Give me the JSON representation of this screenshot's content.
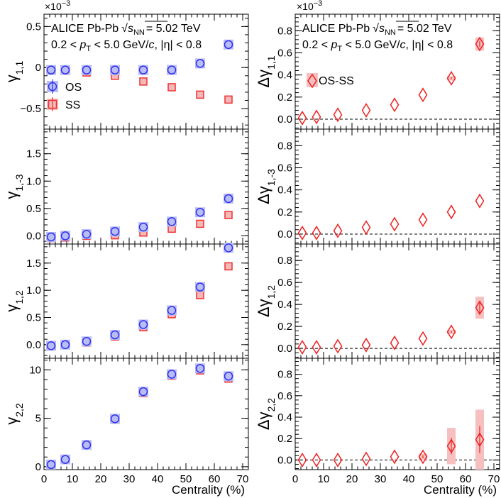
{
  "chart_data": {
    "type": "scatter",
    "title": "ALICE Pb-Pb √sNN = 5.02 TeV",
    "annotation": {
      "collision": "ALICE Pb-Pb",
      "energy_label": "= 5.02 TeV",
      "sqrt_s_base": "s",
      "sqrt_s_sub": "NN",
      "kin_prefix": "0.2 < ",
      "pt_base": "p",
      "pt_sub": "T",
      "kin_mid": " < 5.0 GeV/",
      "kin_c": "c",
      "kin_suffix": ", |η| < 0.8"
    },
    "xlabel": "Centrality (%)",
    "xlim": [
      0,
      72
    ],
    "xticks": [
      0,
      10,
      20,
      30,
      40,
      50,
      60,
      70
    ],
    "x": [
      2.5,
      7.5,
      15,
      25,
      35,
      45,
      55,
      65
    ],
    "exponent_label": "×10",
    "exponent_power": "−3",
    "legend": {
      "os": "OS",
      "ss": "SS",
      "diff": "OS-SS"
    },
    "colors": {
      "os": "#3030ee",
      "os_fill": "#b9bdf5",
      "ss": "#ee3030",
      "ss_fill": "#f5b9b9",
      "diff": "#ee2020",
      "diff_fill": "#f6c0c0"
    },
    "left_panels": [
      {
        "ylabel_base": "γ",
        "ylabel_sub": "1,1",
        "ylim": [
          -0.75,
          0.65
        ],
        "yticks": [
          -0.5,
          0,
          0.5
        ],
        "ytick_labels": [
          "−0.5",
          "0",
          "0.5"
        ],
        "os": [
          -0.03,
          -0.03,
          -0.03,
          -0.03,
          -0.03,
          -0.03,
          0.05,
          0.28
        ],
        "ss": [
          -0.04,
          -0.04,
          -0.06,
          -0.1,
          -0.17,
          -0.24,
          -0.33,
          -0.39
        ]
      },
      {
        "ylabel_base": "γ",
        "ylabel_sub": "1,-3",
        "ylim": [
          -0.15,
          1.95
        ],
        "yticks": [
          0,
          0.5,
          1,
          1.5
        ],
        "ytick_labels": [
          "0.0",
          "0.5",
          "1.0",
          "1.5"
        ],
        "os": [
          -0.02,
          0.0,
          0.03,
          0.08,
          0.16,
          0.26,
          0.43,
          0.68
        ],
        "ss": [
          -0.04,
          -0.03,
          0.0,
          0.01,
          0.06,
          0.13,
          0.22,
          0.38
        ]
      },
      {
        "ylabel_base": "γ",
        "ylabel_sub": "1,2",
        "ylim": [
          -0.25,
          1.85
        ],
        "yticks": [
          0,
          0.5,
          1,
          1.5
        ],
        "ytick_labels": [
          "0.0",
          "0.5",
          "1.0",
          "1.5"
        ],
        "os": [
          -0.02,
          0.0,
          0.06,
          0.18,
          0.37,
          0.63,
          1.06,
          1.78
        ],
        "ss": [
          -0.02,
          -0.01,
          0.04,
          0.15,
          0.32,
          0.56,
          0.91,
          1.44
        ]
      },
      {
        "ylabel_base": "γ",
        "ylabel_sub": "2,2",
        "ylim": [
          -0.3,
          11.2
        ],
        "yticks": [
          0,
          5,
          10
        ],
        "ytick_labels": [
          "0",
          "5",
          "10"
        ],
        "os": [
          0.22,
          0.75,
          2.25,
          4.95,
          7.75,
          9.55,
          10.15,
          9.35
        ],
        "ss": [
          0.2,
          0.72,
          2.2,
          4.85,
          7.6,
          9.4,
          9.95,
          9.1
        ]
      }
    ],
    "right_panels": [
      {
        "ylabel_base": "Δγ",
        "ylabel_sub": "1,1",
        "ylim": [
          -0.09,
          0.95
        ],
        "yticks": [
          0,
          0.2,
          0.4,
          0.6,
          0.8
        ],
        "ytick_labels": [
          "0.0",
          "0.2",
          "0.4",
          "0.6",
          "0.8"
        ],
        "values": [
          0.01,
          0.02,
          0.04,
          0.08,
          0.13,
          0.22,
          0.37,
          0.68
        ],
        "syst": [
          0.0,
          0.0,
          0.0,
          0.0,
          0.0,
          0.0,
          0.02,
          0.06
        ]
      },
      {
        "ylabel_base": "Δγ",
        "ylabel_sub": "1,-3",
        "ylim": [
          -0.09,
          0.95
        ],
        "yticks": [
          0,
          0.2,
          0.4,
          0.6,
          0.8
        ],
        "ytick_labels": [
          "0.0",
          "0.2",
          "0.4",
          "0.6",
          "0.8"
        ],
        "values": [
          0.01,
          0.01,
          0.03,
          0.06,
          0.09,
          0.13,
          0.2,
          0.3
        ],
        "syst": [
          0.0,
          0.0,
          0.0,
          0.0,
          0.0,
          0.0,
          0.0,
          0.0
        ]
      },
      {
        "ylabel_base": "Δγ",
        "ylabel_sub": "1,2",
        "ylim": [
          -0.09,
          0.95
        ],
        "yticks": [
          0,
          0.2,
          0.4,
          0.6,
          0.8
        ],
        "ytick_labels": [
          "0.0",
          "0.2",
          "0.4",
          "0.6",
          "0.8"
        ],
        "values": [
          0.01,
          0.01,
          0.02,
          0.03,
          0.05,
          0.09,
          0.15,
          0.37
        ],
        "syst": [
          0.0,
          0.0,
          0.0,
          0.0,
          0.0,
          0.0,
          0.02,
          0.1
        ]
      },
      {
        "ylabel_base": "Δγ",
        "ylabel_sub": "2,2",
        "ylim": [
          -0.09,
          0.95
        ],
        "yticks": [
          0,
          0.2,
          0.4,
          0.6,
          0.8
        ],
        "ytick_labels": [
          "0.0",
          "0.2",
          "0.4",
          "0.6",
          "0.8"
        ],
        "values": [
          0.0,
          0.0,
          0.0,
          0.01,
          0.03,
          0.03,
          0.13,
          0.19
        ],
        "syst": [
          0.0,
          0.0,
          0.0,
          0.0,
          0.0,
          0.03,
          0.17,
          0.28
        ]
      }
    ]
  }
}
